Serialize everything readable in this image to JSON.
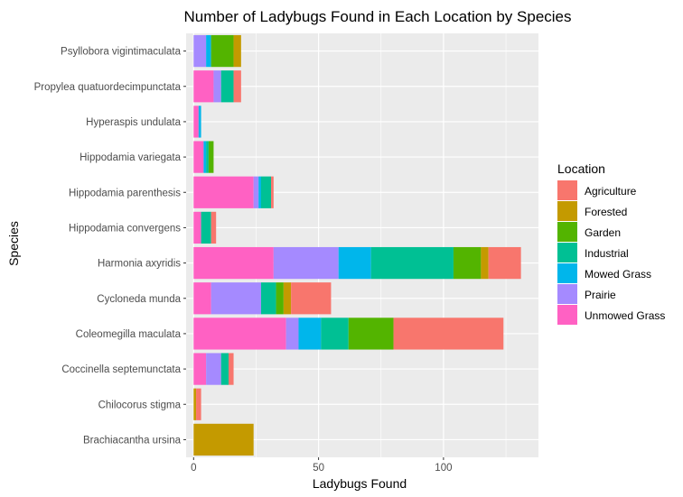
{
  "chart_data": {
    "type": "bar",
    "orientation": "horizontal",
    "stacked": true,
    "title": "Number of Ladybugs Found in Each Location by Species",
    "xlabel": "Ladybugs Found",
    "ylabel": "Species",
    "xlim": [
      -3,
      138
    ],
    "xticks": [
      0,
      50,
      100
    ],
    "grid": true,
    "legend_title": "Location",
    "legend_position": "right",
    "categories": [
      "Psyllobora vigintimaculata",
      "Propylea quatuordecimpunctata",
      "Hyperaspis undulata",
      "Hippodamia variegata",
      "Hippodamia parenthesis",
      "Hippodamia convergens",
      "Harmonia axyridis",
      "Cycloneda munda",
      "Coleomegilla maculata",
      "Coccinella septemunctata",
      "Chilocorus stigma",
      "Brachiacantha ursina"
    ],
    "series": [
      {
        "name": "Unmowed Grass",
        "color": "#FF61C3",
        "values": [
          0,
          8,
          2,
          4,
          24,
          3,
          32,
          7,
          37,
          5,
          0,
          0
        ]
      },
      {
        "name": "Prairie",
        "color": "#A58AFF",
        "values": [
          5,
          3,
          0,
          0,
          2,
          0,
          26,
          20,
          5,
          6,
          0,
          0
        ]
      },
      {
        "name": "Mowed Grass",
        "color": "#00B6EB",
        "values": [
          2,
          0,
          1,
          1,
          1,
          0,
          13,
          0,
          9,
          0,
          0,
          0
        ]
      },
      {
        "name": "Industrial",
        "color": "#00C094",
        "values": [
          0,
          5,
          0,
          1,
          4,
          4,
          33,
          6,
          11,
          3,
          0,
          0
        ]
      },
      {
        "name": "Garden",
        "color": "#53B400",
        "values": [
          9,
          0,
          0,
          2,
          0,
          0,
          11,
          3,
          18,
          0,
          0,
          0
        ]
      },
      {
        "name": "Forested",
        "color": "#C49A00",
        "values": [
          3,
          0,
          0,
          0,
          0,
          0,
          3,
          3,
          0,
          0,
          1,
          24
        ]
      },
      {
        "name": "Agriculture",
        "color": "#F8766D",
        "values": [
          0,
          3,
          0,
          0,
          1,
          2,
          13,
          16,
          44,
          2,
          2,
          0
        ]
      }
    ]
  }
}
